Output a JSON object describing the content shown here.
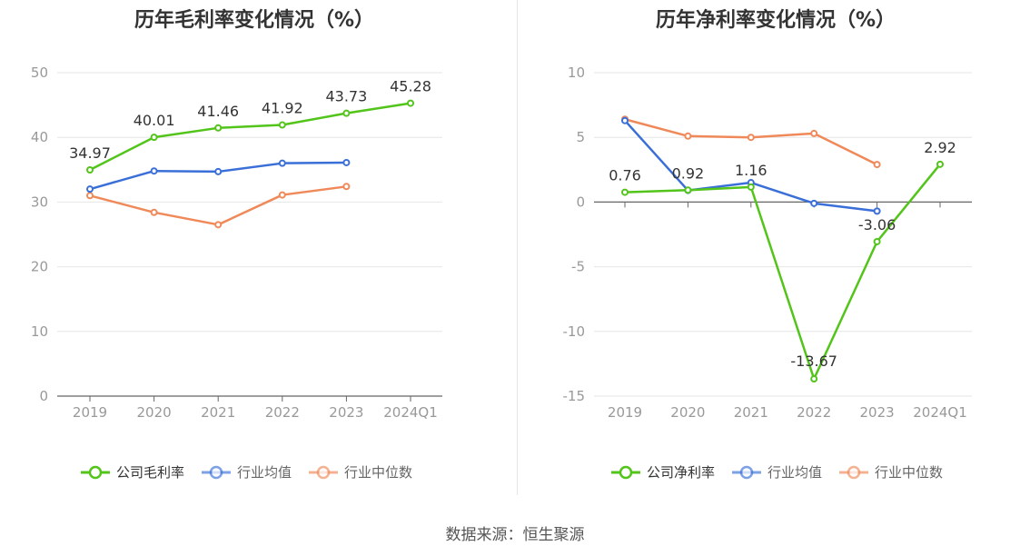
{
  "source": "数据来源：恒生聚源",
  "chart_data": [
    {
      "type": "line",
      "title": "历年毛利率变化情况（%）",
      "categories": [
        "2019",
        "2020",
        "2021",
        "2022",
        "2023",
        "2024Q1"
      ],
      "ylim": [
        0,
        50
      ],
      "yticks": [
        0,
        10,
        20,
        30,
        40,
        50
      ],
      "grid": true,
      "legend_position": "bottom",
      "series": [
        {
          "name": "公司毛利率",
          "color": "#52c41a",
          "values": [
            34.97,
            40.01,
            41.46,
            41.92,
            43.73,
            45.28
          ],
          "labels": [
            "34.97",
            "40.01",
            "41.46",
            "41.92",
            "43.73",
            "45.28"
          ]
        },
        {
          "name": "行业均值",
          "color": "#3a6fd8",
          "values": [
            32.0,
            34.8,
            34.7,
            36.0,
            36.1,
            null
          ],
          "labels": null
        },
        {
          "name": "行业中位数",
          "color": "#f0895a",
          "values": [
            31.0,
            28.4,
            26.5,
            31.1,
            32.4,
            null
          ],
          "labels": null
        }
      ]
    },
    {
      "type": "line",
      "title": "历年净利率变化情况（%）",
      "categories": [
        "2019",
        "2020",
        "2021",
        "2022",
        "2023",
        "2024Q1"
      ],
      "ylim": [
        -15,
        10
      ],
      "yticks": [
        -15,
        -10,
        -5,
        0,
        5,
        10
      ],
      "grid": true,
      "legend_position": "bottom",
      "series": [
        {
          "name": "公司净利率",
          "color": "#52c41a",
          "values": [
            0.76,
            0.92,
            1.16,
            -13.67,
            -3.06,
            2.92
          ],
          "labels": [
            "0.76",
            "0.92",
            "1.16",
            "-13.67",
            "-3.06",
            "2.92"
          ]
        },
        {
          "name": "行业均值",
          "color": "#3a6fd8",
          "values": [
            6.3,
            0.9,
            1.5,
            -0.1,
            -0.7,
            null
          ],
          "labels": null
        },
        {
          "name": "行业中位数",
          "color": "#f0895a",
          "values": [
            6.4,
            5.1,
            5.0,
            5.3,
            2.9,
            null
          ],
          "labels": null
        }
      ]
    }
  ]
}
